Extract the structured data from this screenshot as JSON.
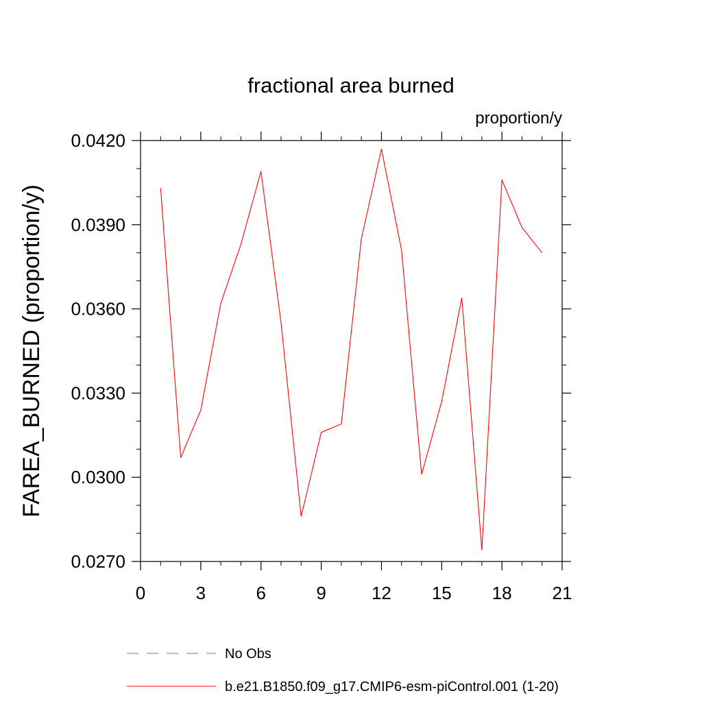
{
  "chart_data": {
    "type": "line",
    "title": "fractional area burned",
    "units_label": "proportion/y",
    "xlabel": "",
    "ylabel": "FAREA_BURNED  (proportion/y)",
    "xlim": [
      0,
      21
    ],
    "ylim": [
      0.027,
      0.042
    ],
    "x_ticks": [
      0,
      3,
      6,
      9,
      12,
      15,
      18,
      21
    ],
    "x_tick_labels": [
      "0",
      "3",
      "6",
      "9",
      "12",
      "15",
      "18",
      "21"
    ],
    "y_ticks": [
      0.027,
      0.03,
      0.033,
      0.036,
      0.039,
      0.042
    ],
    "y_tick_labels": [
      "0.0270",
      "0.0300",
      "0.0330",
      "0.0360",
      "0.0390",
      "0.0420"
    ],
    "grid": false,
    "legend": [
      {
        "label": "No Obs",
        "color": "#7b68ee",
        "style": "dashed"
      },
      {
        "label": "b.e21.B1850.f09_g17.CMIP6-esm-piControl.001 (1-20)",
        "color": "#ff0000",
        "style": "solid"
      }
    ],
    "series": [
      {
        "name": "b.e21.B1850.f09_g17.CMIP6-esm-piControl.001 (1-20)",
        "color": "#ff0000",
        "x": [
          1,
          2,
          3,
          4,
          5,
          6,
          7,
          8,
          9,
          10,
          11,
          12,
          13,
          14,
          15,
          16,
          17,
          18,
          19,
          20
        ],
        "y": [
          0.0403,
          0.0307,
          0.0324,
          0.0362,
          0.0383,
          0.0409,
          0.0355,
          0.0286,
          0.0316,
          0.0319,
          0.0385,
          0.0417,
          0.0381,
          0.0301,
          0.0327,
          0.0364,
          0.0274,
          0.0406,
          0.0389,
          0.038
        ]
      }
    ]
  }
}
